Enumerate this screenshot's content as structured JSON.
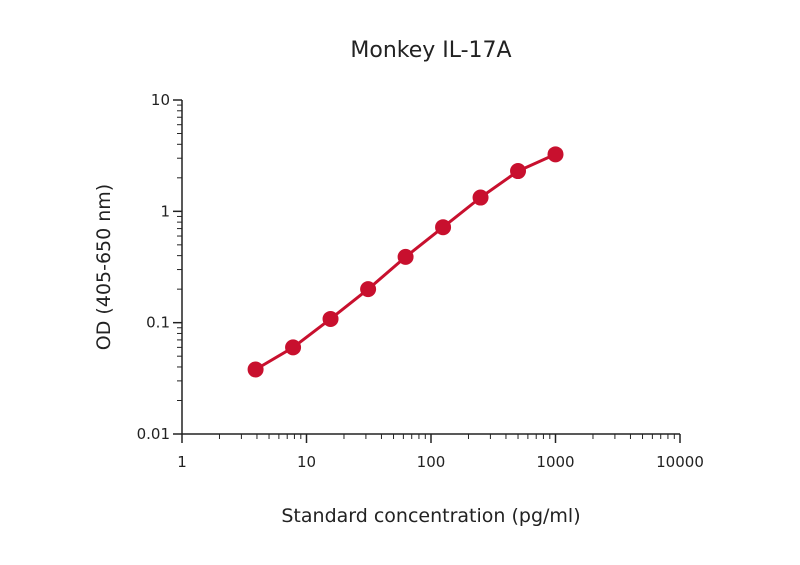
{
  "chart_data": {
    "type": "line",
    "title": "Monkey IL-17A",
    "xlabel": "Standard concentration (pg/ml)",
    "ylabel": "OD (405-650 nm)",
    "x_scale": "log",
    "y_scale": "log",
    "xlim": [
      1,
      10000
    ],
    "ylim": [
      0.01,
      10
    ],
    "x_ticks": [
      1,
      10,
      100,
      1000,
      10000
    ],
    "x_tick_labels": [
      "1",
      "10",
      "100",
      "1000",
      "10000"
    ],
    "y_ticks": [
      0.01,
      0.1,
      1,
      10
    ],
    "y_tick_labels": [
      "0.01",
      "0.1",
      "1",
      "10"
    ],
    "grid": false,
    "series": [
      {
        "color": "#c8102e",
        "x": [
          3.9,
          7.8,
          15.6,
          31.25,
          62.5,
          125,
          250,
          500,
          1000
        ],
        "y": [
          0.038,
          0.06,
          0.108,
          0.2,
          0.39,
          0.72,
          1.33,
          2.3,
          3.25
        ]
      }
    ]
  }
}
